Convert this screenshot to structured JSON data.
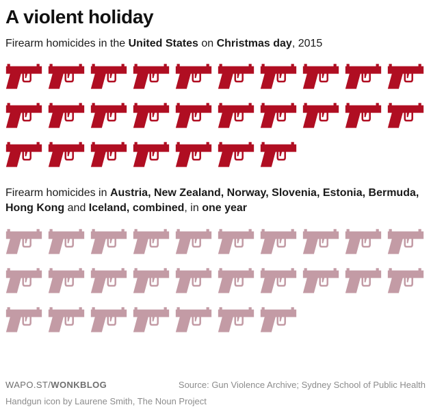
{
  "page": {
    "title": "A violent holiday"
  },
  "subtitle_us": {
    "p1": "Firearm homicides in the ",
    "p2": "United States",
    "p3": " on ",
    "p4": "Christmas day",
    "p5": ", 2015"
  },
  "subtitle_countries": {
    "p1": "Firearm homicides in ",
    "p2": "Austria, New Zealand, Norway, Slovenia, Estonia, Bermuda, Hong Kong",
    "p3": " and ",
    "p4": "Iceland, combined",
    "p5": ", in ",
    "p6": "one year"
  },
  "footer": {
    "brand_prefix": "WAPO.ST/",
    "brand_bold": "WONKBLOG",
    "source": "Source: Gun Violence Archive; Sydney School of Public Health",
    "credit": "Handgun icon by Laurene Smith, The Noun Project"
  },
  "chart_data": {
    "type": "pictogram",
    "title": "A violent holiday",
    "icon": "handgun",
    "icon_unit": 1,
    "legend_position": "none",
    "grid": false,
    "series": [
      {
        "name": "Firearm homicides in the United States on Christmas day, 2015",
        "value": 27,
        "rows": [
          10,
          10,
          7
        ],
        "color": "#b00e22"
      },
      {
        "name": "Firearm homicides in Austria, New Zealand, Norway, Slovenia, Estonia, Bermuda, Hong Kong and Iceland, combined, in one year",
        "value": 27,
        "rows": [
          10,
          10,
          7
        ],
        "color": "#c39ba5"
      }
    ]
  }
}
